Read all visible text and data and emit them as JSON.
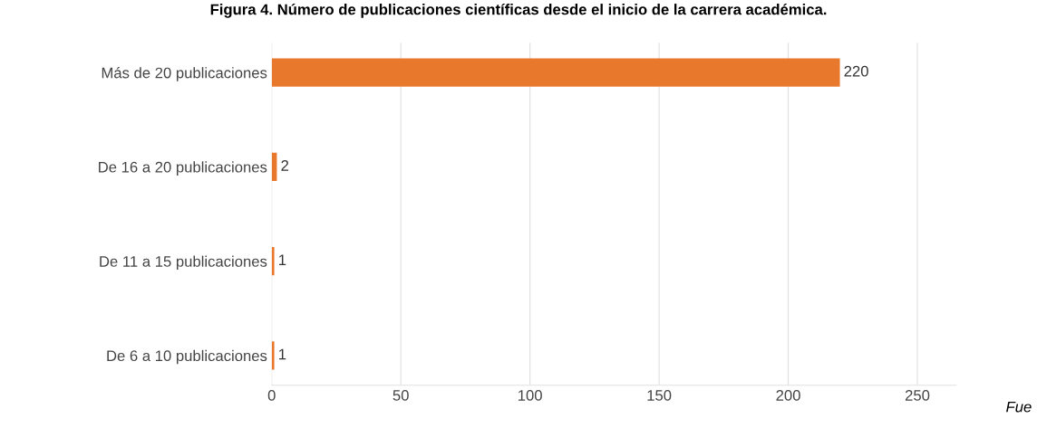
{
  "chart_data": {
    "type": "bar",
    "orientation": "horizontal",
    "title": "Figura 4. Número de publicaciones científicas desde el inicio de la carrera académica.",
    "categories": [
      "Más de 20 publicaciones",
      "De 16 a 20 publicaciones",
      "De 11 a 15 publicaciones",
      "De 6 a 10 publicaciones"
    ],
    "values": [
      220,
      2,
      1,
      1
    ],
    "color": "#e8782c",
    "data_labels": true,
    "xlim": [
      0,
      265
    ],
    "xticks": [
      0,
      50,
      100,
      150,
      200,
      250
    ],
    "grid": "x",
    "annotations": [
      "Fue"
    ]
  }
}
